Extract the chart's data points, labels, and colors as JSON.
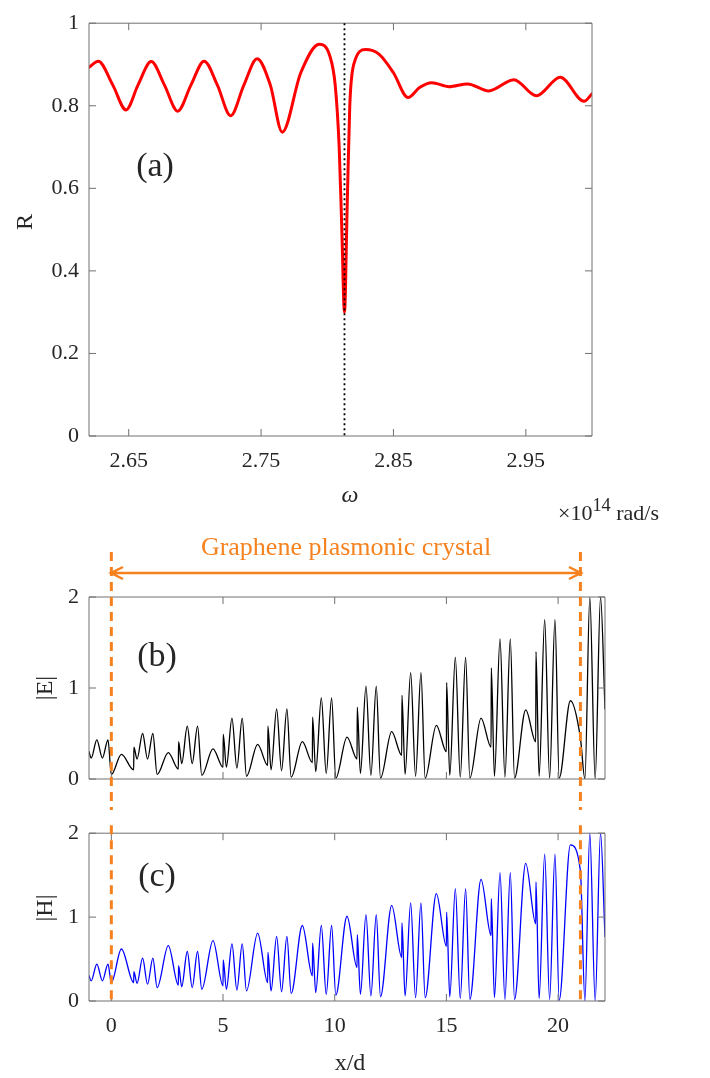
{
  "chart_data": [
    {
      "type": "line",
      "xlabel": "ω",
      "ylabel": "R",
      "annotations": [
        "(a)",
        "×10$^{14}$ rad/s"
      ],
      "x": [
        2.62,
        2.627,
        2.638,
        2.648,
        2.657,
        2.667,
        2.677,
        2.687,
        2.697,
        2.707,
        2.717,
        2.727,
        2.737,
        2.747,
        2.757,
        2.766,
        2.78,
        2.794,
        2.802,
        2.806,
        2.809,
        2.811,
        2.813,
        2.815,
        2.817,
        2.82,
        2.829,
        2.839,
        2.85,
        2.861,
        2.87,
        2.879,
        2.892,
        2.906,
        2.922,
        2.941,
        2.958,
        2.976,
        2.994,
        3.0
      ],
      "series": [
        {
          "color": "#ff0000",
          "values": [
            0.893,
            0.908,
            0.85,
            0.79,
            0.85,
            0.907,
            0.85,
            0.787,
            0.85,
            0.908,
            0.85,
            0.776,
            0.85,
            0.914,
            0.85,
            0.736,
            0.88,
            0.949,
            0.92,
            0.85,
            0.7,
            0.5,
            0.3,
            0.55,
            0.8,
            0.9,
            0.936,
            0.925,
            0.88,
            0.82,
            0.845,
            0.856,
            0.846,
            0.853,
            0.836,
            0.863,
            0.824,
            0.869,
            0.811,
            0.829
          ]
        }
      ],
      "xlim": [
        2.62,
        3.0
      ],
      "ylim": [
        0,
        1
      ],
      "xticks": [
        2.65,
        2.75,
        2.85,
        2.95
      ],
      "yticks": [
        0,
        0.2,
        0.4,
        0.6,
        0.8,
        1
      ],
      "ref_lines": [
        {
          "axis": "x",
          "value": 2.813,
          "color": "#000000",
          "line_style": "dotted"
        }
      ]
    },
    {
      "type": "line",
      "ylabel": "|E|",
      "annotations": [
        "(b)",
        "Graphene plasmonic crystal"
      ],
      "tick_labels": "y",
      "x": [
        -1,
        -0.9,
        -0.65,
        -0.4,
        -0.15,
        0,
        0.45,
        1,
        1.01,
        1.15,
        1.4,
        1.62,
        1.86,
        2.05,
        2.55,
        3,
        3.01,
        3.15,
        3.4,
        3.62,
        3.86,
        4.05,
        4.55,
        5,
        5.01,
        5.15,
        5.4,
        5.62,
        5.86,
        6.05,
        6.55,
        7,
        7.01,
        7.15,
        7.4,
        7.62,
        7.86,
        8.05,
        8.55,
        9,
        9.01,
        9.15,
        9.4,
        9.62,
        9.86,
        10.05,
        10.55,
        11,
        11.01,
        11.15,
        11.4,
        11.62,
        11.86,
        12.05,
        12.55,
        13,
        13.01,
        13.15,
        13.4,
        13.62,
        13.86,
        14.05,
        14.55,
        15,
        15.01,
        15.15,
        15.4,
        15.62,
        15.86,
        16.05,
        16.55,
        17,
        17.01,
        17.15,
        17.4,
        17.62,
        17.86,
        18.05,
        18.55,
        19,
        19.01,
        19.15,
        19.4,
        19.62,
        19.86,
        20.05,
        20.55,
        21,
        21.2,
        21.42,
        21.66,
        21.9,
        22.1
      ],
      "series": [
        {
          "color": "#000000",
          "values": [
            0.3,
            0.23,
            0.43,
            0.23,
            0.43,
            0.05,
            0.27,
            0.1,
            0.35,
            0.22,
            0.5,
            0.22,
            0.5,
            0.05,
            0.29,
            0.11,
            0.41,
            0.17,
            0.58,
            0.17,
            0.58,
            0.04,
            0.33,
            0.13,
            0.49,
            0.13,
            0.67,
            0.12,
            0.67,
            0.03,
            0.38,
            0.15,
            0.58,
            0.1,
            0.77,
            0.09,
            0.77,
            0.02,
            0.41,
            0.18,
            0.68,
            0.08,
            0.89,
            0.06,
            0.89,
            0.01,
            0.46,
            0.22,
            0.79,
            0.06,
            1.02,
            0.04,
            1.02,
            0.01,
            0.52,
            0.26,
            0.92,
            0.05,
            1.17,
            0.03,
            1.17,
            0.01,
            0.59,
            0.3,
            1.06,
            0.04,
            1.34,
            0.02,
            1.34,
            0.01,
            0.67,
            0.35,
            1.22,
            0.03,
            1.54,
            0.02,
            1.54,
            0.01,
            0.76,
            0.41,
            1.4,
            0.03,
            1.75,
            0.01,
            1.75,
            0.01,
            0.86,
            0.45,
            0,
            2,
            0,
            2,
            0.77
          ]
        }
      ],
      "xlim": [
        -1,
        22.1
      ],
      "ylim": [
        0,
        2
      ],
      "xticks": [
        0,
        5,
        10,
        15,
        20
      ],
      "yticks": [
        0,
        1,
        2
      ],
      "ref_lines": [
        {
          "axis": "x",
          "value": 0,
          "color": "#f5821f",
          "line_style": "dashed"
        },
        {
          "axis": "x",
          "value": 21,
          "color": "#f5821f",
          "line_style": "dashed"
        }
      ]
    },
    {
      "type": "line",
      "xlabel": "x/d",
      "ylabel": "|H|",
      "annotations": [
        "(c)"
      ],
      "x": [
        -1,
        -0.9,
        -0.65,
        -0.4,
        -0.15,
        0,
        0.45,
        1,
        1.01,
        1.15,
        1.4,
        1.62,
        1.86,
        2.05,
        2.55,
        3,
        3.01,
        3.15,
        3.4,
        3.62,
        3.86,
        4.05,
        4.55,
        5,
        5.01,
        5.15,
        5.4,
        5.62,
        5.86,
        6.05,
        6.55,
        7,
        7.01,
        7.15,
        7.4,
        7.62,
        7.86,
        8.05,
        8.55,
        9,
        9.01,
        9.15,
        9.4,
        9.62,
        9.86,
        10.05,
        10.55,
        11,
        11.01,
        11.15,
        11.4,
        11.62,
        11.86,
        12.05,
        12.55,
        13,
        13.01,
        13.15,
        13.4,
        13.62,
        13.86,
        14.05,
        14.55,
        15,
        15.01,
        15.15,
        15.4,
        15.62,
        15.86,
        16.05,
        16.55,
        17,
        17.01,
        17.15,
        17.4,
        17.62,
        17.86,
        18.05,
        18.55,
        19,
        19.01,
        19.15,
        19.4,
        19.62,
        19.86,
        20.05,
        20.55,
        21,
        21.2,
        21.42,
        21.66,
        21.9,
        22.1
      ],
      "series": [
        {
          "color": "#0000ff",
          "values": [
            0.3,
            0.24,
            0.44,
            0.24,
            0.44,
            0.22,
            0.62,
            0.22,
            0.35,
            0.21,
            0.51,
            0.2,
            0.51,
            0.16,
            0.66,
            0.19,
            0.42,
            0.17,
            0.59,
            0.16,
            0.59,
            0.14,
            0.72,
            0.18,
            0.49,
            0.14,
            0.68,
            0.13,
            0.68,
            0.12,
            0.81,
            0.22,
            0.58,
            0.12,
            0.77,
            0.11,
            0.77,
            0.09,
            0.9,
            0.3,
            0.69,
            0.1,
            0.9,
            0.08,
            0.9,
            0.07,
            1.01,
            0.4,
            0.79,
            0.08,
            1.03,
            0.06,
            1.03,
            0.05,
            1.14,
            0.52,
            0.93,
            0.06,
            1.17,
            0.04,
            1.17,
            0.04,
            1.28,
            0.65,
            1.06,
            0.05,
            1.34,
            0.03,
            1.34,
            0.02,
            1.45,
            0.78,
            1.22,
            0.04,
            1.53,
            0.02,
            1.53,
            0.02,
            1.64,
            0.92,
            1.42,
            0.03,
            1.75,
            0.02,
            1.75,
            0.01,
            1.86,
            1.55,
            0,
            2,
            0,
            2,
            0.77
          ]
        }
      ],
      "xlim": [
        -1,
        22.1
      ],
      "ylim": [
        0,
        2
      ],
      "xticks": [
        0,
        5,
        10,
        15,
        20
      ],
      "yticks": [
        0,
        1,
        2
      ],
      "ref_lines": [
        {
          "axis": "x",
          "value": 0,
          "color": "#f5821f",
          "line_style": "dashed"
        },
        {
          "axis": "x",
          "value": 21,
          "color": "#f5821f",
          "line_style": "dashed"
        }
      ]
    }
  ]
}
